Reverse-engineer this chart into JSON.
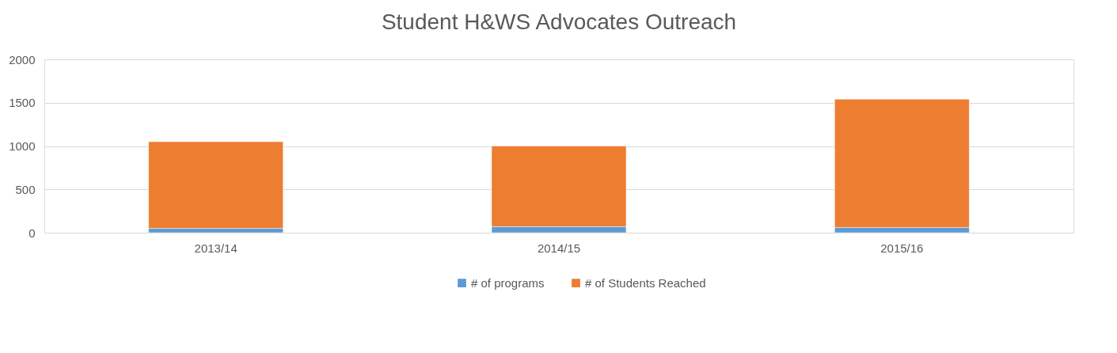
{
  "chart_data": {
    "type": "bar",
    "title": "Student H&WS Advocates Outreach",
    "categories": [
      "2013/14",
      "2014/15",
      "2015/16"
    ],
    "series": [
      {
        "name": "# of programs",
        "color": "#5b9bd5",
        "values": [
          50,
          70,
          60
        ]
      },
      {
        "name": "# of Students Reached",
        "color": "#ed7d31",
        "values": [
          1000,
          930,
          1480
        ]
      }
    ],
    "stacked": true,
    "ylim": [
      0,
      2000
    ],
    "yticks": [
      0,
      500,
      1000,
      1500,
      2000
    ],
    "grid": "y",
    "legend": "bottom"
  }
}
